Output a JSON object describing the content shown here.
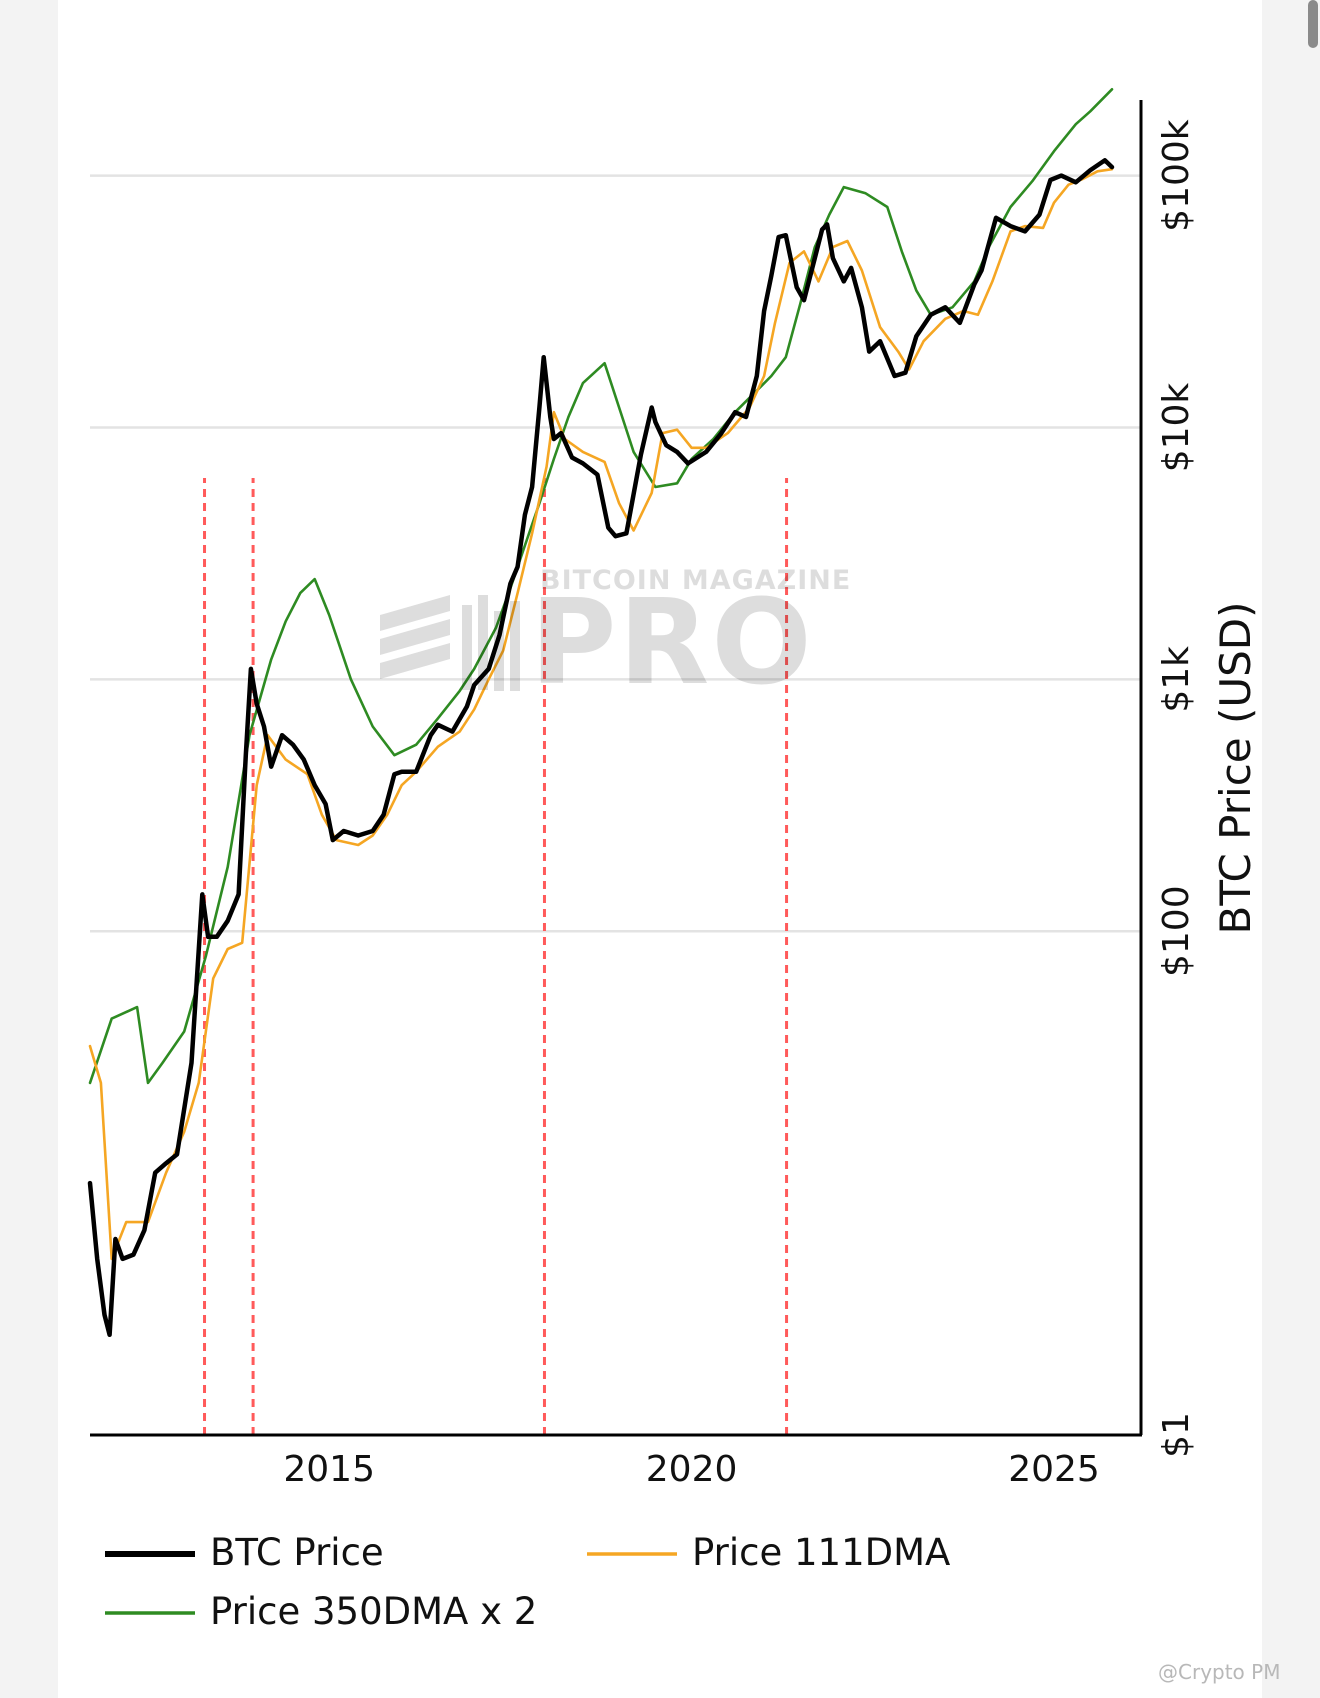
{
  "chart_data": {
    "type": "line",
    "title": "",
    "xlabel": "",
    "ylabel": "BTC Price (USD)",
    "y_scale": "log",
    "ylim": [
      1,
      200000
    ],
    "xlim": [
      "2011-08",
      "2025-11"
    ],
    "x_ticks": [
      2015,
      2020,
      2025
    ],
    "y_ticks": [
      {
        "value": 1,
        "label": "$1"
      },
      {
        "value": 100,
        "label": "$100"
      },
      {
        "value": 1000,
        "label": "$1k"
      },
      {
        "value": 10000,
        "label": "$10k"
      },
      {
        "value": 100000,
        "label": "$100k"
      }
    ],
    "grid": "horizontal",
    "legend_position": "bottom",
    "series": [
      {
        "name": "BTC Price",
        "color": "#000000",
        "x": [
          2011.7,
          2011.8,
          2011.9,
          2011.97,
          2012.05,
          2012.15,
          2012.3,
          2012.45,
          2012.6,
          2012.75,
          2012.9,
          2013.1,
          2013.25,
          2013.33,
          2013.45,
          2013.6,
          2013.75,
          2013.85,
          2013.92,
          2014.0,
          2014.1,
          2014.2,
          2014.35,
          2014.5,
          2014.65,
          2014.8,
          2014.95,
          2015.05,
          2015.2,
          2015.4,
          2015.6,
          2015.75,
          2015.9,
          2016.0,
          2016.2,
          2016.4,
          2016.5,
          2016.7,
          2016.9,
          2017.0,
          2017.2,
          2017.35,
          2017.5,
          2017.6,
          2017.7,
          2017.8,
          2017.9,
          2017.96,
          2018.05,
          2018.1,
          2018.2,
          2018.35,
          2018.5,
          2018.7,
          2018.85,
          2018.95,
          2019.1,
          2019.3,
          2019.45,
          2019.5,
          2019.65,
          2019.8,
          2019.95,
          2020.2,
          2020.4,
          2020.6,
          2020.75,
          2020.9,
          2021.0,
          2021.1,
          2021.2,
          2021.3,
          2021.45,
          2021.55,
          2021.7,
          2021.8,
          2021.87,
          2021.95,
          2022.1,
          2022.2,
          2022.35,
          2022.45,
          2022.6,
          2022.8,
          2022.95,
          2023.1,
          2023.3,
          2023.5,
          2023.7,
          2023.9,
          2024.0,
          2024.2,
          2024.4,
          2024.6,
          2024.8,
          2024.95,
          2025.1,
          2025.3,
          2025.5,
          2025.7,
          2025.8
        ],
        "values": [
          10,
          5,
          3,
          2.5,
          6,
          5,
          5.2,
          6.5,
          11,
          12,
          13,
          30,
          140,
          95,
          95,
          110,
          140,
          500,
          1100,
          800,
          650,
          450,
          600,
          550,
          480,
          380,
          320,
          230,
          250,
          240,
          250,
          290,
          420,
          430,
          430,
          600,
          660,
          620,
          780,
          950,
          1100,
          1500,
          2400,
          2800,
          4500,
          5800,
          12000,
          19000,
          11000,
          9000,
          9500,
          7600,
          7200,
          6500,
          4000,
          3700,
          3800,
          7800,
          12000,
          10500,
          8500,
          8000,
          7200,
          8000,
          9400,
          11500,
          11000,
          16000,
          29000,
          40000,
          57000,
          58000,
          36000,
          32000,
          47000,
          61000,
          64000,
          47000,
          38000,
          43000,
          30000,
          20000,
          22000,
          16000,
          16500,
          23000,
          28000,
          30000,
          26000,
          37000,
          42000,
          68000,
          63000,
          60000,
          70000,
          96000,
          100000,
          94000,
          105000,
          115000,
          108000
        ]
      },
      {
        "name": "Price 111DMA",
        "color": "#f5a623",
        "x": [
          2011.7,
          2011.85,
          2012.0,
          2012.2,
          2012.5,
          2012.75,
          2013.0,
          2013.2,
          2013.4,
          2013.6,
          2013.8,
          2014.0,
          2014.15,
          2014.4,
          2014.7,
          2014.9,
          2015.1,
          2015.4,
          2015.6,
          2015.8,
          2016.0,
          2016.2,
          2016.5,
          2016.8,
          2017.0,
          2017.2,
          2017.4,
          2017.6,
          2017.8,
          2018.0,
          2018.1,
          2018.25,
          2018.5,
          2018.8,
          2019.0,
          2019.2,
          2019.45,
          2019.6,
          2019.8,
          2020.0,
          2020.2,
          2020.5,
          2020.8,
          2021.0,
          2021.15,
          2021.35,
          2021.55,
          2021.75,
          2021.95,
          2022.15,
          2022.35,
          2022.6,
          2022.85,
          2023.0,
          2023.2,
          2023.5,
          2023.75,
          2023.95,
          2024.15,
          2024.4,
          2024.6,
          2024.85,
          2025.0,
          2025.2,
          2025.4,
          2025.6,
          2025.8
        ],
        "values": [
          35,
          25,
          5,
          7,
          7,
          11,
          16,
          25,
          65,
          85,
          90,
          380,
          600,
          480,
          420,
          290,
          230,
          220,
          240,
          290,
          380,
          430,
          540,
          620,
          760,
          1000,
          1300,
          2200,
          3800,
          7000,
          11500,
          9000,
          8000,
          7300,
          5000,
          3900,
          5500,
          9500,
          9800,
          8300,
          8300,
          9500,
          12000,
          16000,
          26000,
          45000,
          50000,
          38000,
          52000,
          55000,
          42000,
          25000,
          20000,
          17000,
          22000,
          27000,
          29000,
          28000,
          38000,
          60000,
          63000,
          62000,
          78000,
          92000,
          97000,
          104000,
          106000
        ]
      },
      {
        "name": "Price 350DMA x 2",
        "color": "#2e8b22",
        "x": [
          2011.7,
          2012.0,
          2012.35,
          2012.5,
          2012.7,
          2013.0,
          2013.3,
          2013.6,
          2013.9,
          2014.2,
          2014.4,
          2014.6,
          2014.8,
          2015.0,
          2015.3,
          2015.6,
          2015.9,
          2016.2,
          2016.5,
          2016.8,
          2017.0,
          2017.3,
          2017.5,
          2017.7,
          2017.9,
          2018.1,
          2018.3,
          2018.5,
          2018.8,
          2019.0,
          2019.2,
          2019.5,
          2019.8,
          2020.0,
          2020.3,
          2020.6,
          2020.9,
          2021.1,
          2021.3,
          2021.5,
          2021.7,
          2021.9,
          2022.1,
          2022.4,
          2022.7,
          2022.9,
          2023.1,
          2023.3,
          2023.6,
          2023.9,
          2024.1,
          2024.4,
          2024.7,
          2025.0,
          2025.3,
          2025.5,
          2025.8
        ],
        "values": [
          25,
          45,
          50,
          25,
          30,
          40,
          80,
          180,
          600,
          1200,
          1700,
          2200,
          2500,
          1800,
          1000,
          650,
          500,
          550,
          700,
          900,
          1100,
          1600,
          2300,
          3400,
          5000,
          7500,
          11000,
          15000,
          18000,
          12000,
          8000,
          5800,
          6000,
          7500,
          9000,
          11500,
          14000,
          16000,
          19000,
          31000,
          52000,
          70000,
          90000,
          85000,
          75000,
          50000,
          35000,
          28000,
          30000,
          38000,
          52000,
          75000,
          95000,
          125000,
          160000,
          180000,
          220000
        ]
      }
    ],
    "vertical_markers": {
      "color": "#ff5a5a",
      "style": "dashed",
      "x": [
        2013.28,
        2013.95,
        2017.97,
        2021.31
      ]
    }
  },
  "legend": {
    "items": [
      {
        "label": "BTC Price",
        "color": "#000000"
      },
      {
        "label": "Price 111DMA",
        "color": "#f5a623"
      },
      {
        "label": "Price 350DMA x 2",
        "color": "#2e8b22"
      }
    ]
  },
  "watermark": {
    "small_text": "BITCOIN MAGAZINE",
    "big_text": "PRO"
  },
  "credit": "@Crypto PM"
}
